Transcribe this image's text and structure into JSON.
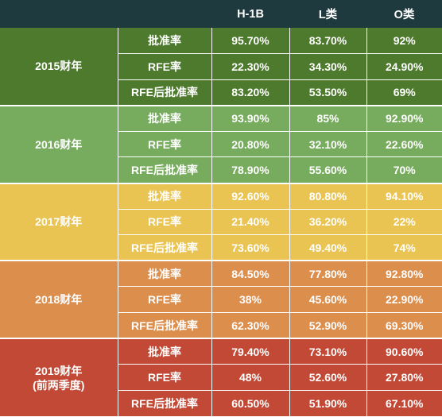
{
  "table": {
    "columns": [
      "",
      "",
      "H-1B",
      "L类",
      "O类"
    ],
    "groups": [
      {
        "year": "2015财年",
        "rows": [
          {
            "metric": "批准率",
            "h1b": "95.70%",
            "l": "83.70%",
            "o": "92%"
          },
          {
            "metric": "RFE率",
            "h1b": "22.30%",
            "l": "34.30%",
            "o": "24.90%"
          },
          {
            "metric": "RFE后批准率",
            "h1b": "83.20%",
            "l": "53.50%",
            "o": "69%"
          }
        ]
      },
      {
        "year": "2016财年",
        "rows": [
          {
            "metric": "批准率",
            "h1b": "93.90%",
            "l": "85%",
            "o": "92.90%"
          },
          {
            "metric": "RFE率",
            "h1b": "20.80%",
            "l": "32.10%",
            "o": "22.60%"
          },
          {
            "metric": "RFE后批准率",
            "h1b": "78.90%",
            "l": "55.60%",
            "o": "70%"
          }
        ]
      },
      {
        "year": "2017财年",
        "rows": [
          {
            "metric": "批准率",
            "h1b": "92.60%",
            "l": "80.80%",
            "o": "94.10%"
          },
          {
            "metric": "RFE率",
            "h1b": "21.40%",
            "l": "36.20%",
            "o": "22%"
          },
          {
            "metric": "RFE后批准率",
            "h1b": "73.60%",
            "l": "49.40%",
            "o": "74%"
          }
        ]
      },
      {
        "year": "2018财年",
        "rows": [
          {
            "metric": "批准率",
            "h1b": "84.50%",
            "l": "77.80%",
            "o": "92.80%"
          },
          {
            "metric": "RFE率",
            "h1b": "38%",
            "l": "45.60%",
            "o": "22.90%"
          },
          {
            "metric": "RFE后批准率",
            "h1b": "62.30%",
            "l": "52.90%",
            "o": "69.30%"
          }
        ]
      },
      {
        "year": "2019财年",
        "year_note": "(前两季度)",
        "rows": [
          {
            "metric": "批准率",
            "h1b": "79.40%",
            "l": "73.10%",
            "o": "90.60%"
          },
          {
            "metric": "RFE率",
            "h1b": "48%",
            "l": "52.60%",
            "o": "27.80%"
          },
          {
            "metric": "RFE后批准率",
            "h1b": "60.50%",
            "l": "51.90%",
            "o": "67.10%"
          }
        ]
      }
    ]
  },
  "colors": {
    "header": "#1f3a3e",
    "group_2015": "#4d7a2d",
    "group_2016": "#77ac5e",
    "group_2017": "#eac452",
    "group_2018": "#dc8e4d",
    "group_2019": "#c24935"
  }
}
